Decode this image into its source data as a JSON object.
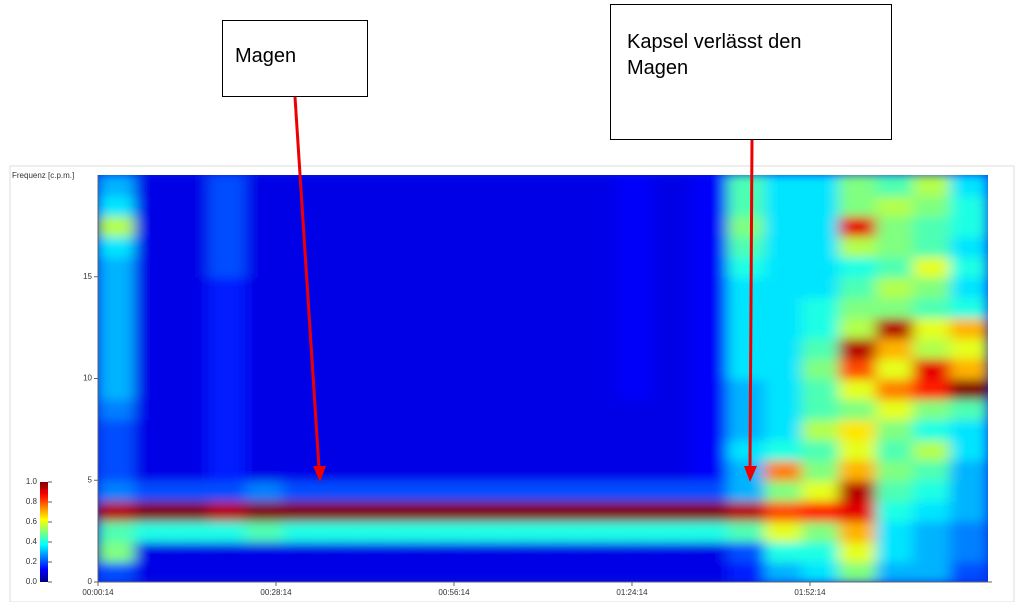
{
  "chart_data": {
    "type": "heatmap",
    "ylabel": "Frequenz [c.p.m.]",
    "annotations": [
      "Magen",
      "Kapsel verlässt den Magen"
    ],
    "xlim": [
      14,
      8414
    ],
    "xticks": [
      {
        "value": 14,
        "label": "00:00:14"
      },
      {
        "value": 1694,
        "label": "00:28:14"
      },
      {
        "value": 3374,
        "label": "00:56:14"
      },
      {
        "value": 5054,
        "label": "01:24:14"
      },
      {
        "value": 6734,
        "label": "01:52:14"
      }
    ],
    "ylim": [
      0,
      20
    ],
    "yticks": [
      0,
      5,
      10,
      15
    ],
    "colorbar_lim": [
      0,
      1
    ],
    "colorbar_ticks": [
      {
        "value": 0,
        "label": "0.0"
      },
      0.2,
      0.4,
      0.6,
      0.8,
      {
        "value": 1,
        "label": "1.0"
      }
    ],
    "x": [
      189,
      539,
      889,
      1239,
      1589,
      1939,
      2289,
      2639,
      2989,
      3339,
      3689,
      4039,
      4389,
      4739,
      5089,
      5439,
      5789,
      6139,
      6489,
      6839,
      7189,
      7539,
      7889,
      8239
    ],
    "y": [
      0.5,
      1.5,
      2.5,
      3.5,
      4.5,
      5.5,
      6.5,
      7.5,
      8.5,
      9.5,
      10.5,
      11.5,
      12.5,
      13.5,
      14.5,
      15.5,
      16.5,
      17.5,
      18.5,
      19.5
    ],
    "z": [
      [
        0.2,
        0.1,
        0.1,
        0.1,
        0.1,
        0.1,
        0.1,
        0.1,
        0.1,
        0.1,
        0.1,
        0.1,
        0.1,
        0.1,
        0.1,
        0.1,
        0.1,
        0.15,
        0.3,
        0.35,
        0.5,
        0.3,
        0.3,
        0.2
      ],
      [
        0.5,
        0.1,
        0.1,
        0.1,
        0.1,
        0.1,
        0.1,
        0.1,
        0.1,
        0.1,
        0.1,
        0.1,
        0.1,
        0.1,
        0.1,
        0.1,
        0.1,
        0.2,
        0.4,
        0.4,
        0.6,
        0.35,
        0.3,
        0.25
      ],
      [
        0.45,
        0.4,
        0.4,
        0.4,
        0.45,
        0.4,
        0.4,
        0.4,
        0.4,
        0.4,
        0.4,
        0.4,
        0.4,
        0.4,
        0.4,
        0.4,
        0.4,
        0.45,
        0.6,
        0.5,
        0.7,
        0.35,
        0.3,
        0.25
      ],
      [
        0.95,
        1,
        1,
        0.95,
        1,
        1,
        1,
        1,
        1,
        1,
        1,
        1,
        1,
        1,
        1,
        1,
        1,
        0.95,
        0.8,
        0.85,
        0.9,
        0.4,
        0.35,
        0.3
      ],
      [
        0.25,
        0.2,
        0.2,
        0.2,
        0.25,
        0.2,
        0.2,
        0.2,
        0.2,
        0.2,
        0.2,
        0.2,
        0.2,
        0.2,
        0.2,
        0.2,
        0.2,
        0.3,
        0.5,
        0.6,
        0.95,
        0.45,
        0.4,
        0.3
      ],
      [
        0.2,
        0.1,
        0.1,
        0.15,
        0.1,
        0.1,
        0.1,
        0.1,
        0.1,
        0.1,
        0.1,
        0.1,
        0.1,
        0.1,
        0.1,
        0.1,
        0.12,
        0.3,
        0.75,
        0.5,
        0.7,
        0.5,
        0.45,
        0.3
      ],
      [
        0.2,
        0.1,
        0.1,
        0.15,
        0.1,
        0.1,
        0.1,
        0.1,
        0.1,
        0.1,
        0.1,
        0.1,
        0.1,
        0.1,
        0.1,
        0.1,
        0.12,
        0.35,
        0.4,
        0.45,
        0.6,
        0.45,
        0.55,
        0.35
      ],
      [
        0.2,
        0.1,
        0.1,
        0.15,
        0.1,
        0.1,
        0.1,
        0.1,
        0.1,
        0.1,
        0.1,
        0.1,
        0.1,
        0.1,
        0.1,
        0.1,
        0.12,
        0.3,
        0.35,
        0.55,
        0.65,
        0.5,
        0.4,
        0.35
      ],
      [
        0.25,
        0.1,
        0.1,
        0.15,
        0.1,
        0.1,
        0.1,
        0.1,
        0.1,
        0.1,
        0.1,
        0.1,
        0.1,
        0.1,
        0.1,
        0.1,
        0.12,
        0.3,
        0.35,
        0.45,
        0.5,
        0.6,
        0.5,
        0.45
      ],
      [
        0.3,
        0.1,
        0.1,
        0.15,
        0.1,
        0.1,
        0.1,
        0.1,
        0.1,
        0.1,
        0.1,
        0.1,
        0.1,
        0.1,
        0.12,
        0.1,
        0.12,
        0.3,
        0.35,
        0.45,
        0.6,
        0.75,
        0.85,
        1
      ],
      [
        0.3,
        0.1,
        0.1,
        0.15,
        0.1,
        0.1,
        0.1,
        0.1,
        0.1,
        0.1,
        0.1,
        0.1,
        0.1,
        0.1,
        0.12,
        0.1,
        0.12,
        0.35,
        0.35,
        0.5,
        0.8,
        0.6,
        0.9,
        0.7
      ],
      [
        0.3,
        0.1,
        0.1,
        0.15,
        0.1,
        0.1,
        0.1,
        0.1,
        0.1,
        0.1,
        0.1,
        0.1,
        0.1,
        0.1,
        0.12,
        0.1,
        0.12,
        0.35,
        0.35,
        0.45,
        0.95,
        0.7,
        0.55,
        0.6
      ],
      [
        0.3,
        0.1,
        0.1,
        0.15,
        0.1,
        0.1,
        0.1,
        0.1,
        0.1,
        0.1,
        0.1,
        0.1,
        0.1,
        0.1,
        0.12,
        0.1,
        0.12,
        0.35,
        0.35,
        0.4,
        0.55,
        0.95,
        0.6,
        0.7
      ],
      [
        0.3,
        0.1,
        0.1,
        0.15,
        0.1,
        0.1,
        0.1,
        0.1,
        0.1,
        0.1,
        0.1,
        0.1,
        0.1,
        0.1,
        0.12,
        0.1,
        0.12,
        0.35,
        0.35,
        0.4,
        0.5,
        0.5,
        0.45,
        0.4
      ],
      [
        0.3,
        0.1,
        0.1,
        0.15,
        0.1,
        0.1,
        0.1,
        0.1,
        0.1,
        0.1,
        0.1,
        0.1,
        0.1,
        0.1,
        0.12,
        0.1,
        0.12,
        0.35,
        0.35,
        0.35,
        0.45,
        0.55,
        0.5,
        0.35
      ],
      [
        0.3,
        0.1,
        0.1,
        0.2,
        0.1,
        0.1,
        0.1,
        0.1,
        0.1,
        0.1,
        0.1,
        0.1,
        0.1,
        0.1,
        0.12,
        0.1,
        0.12,
        0.4,
        0.35,
        0.35,
        0.4,
        0.45,
        0.6,
        0.4
      ],
      [
        0.35,
        0.1,
        0.1,
        0.2,
        0.1,
        0.1,
        0.1,
        0.1,
        0.1,
        0.1,
        0.1,
        0.1,
        0.1,
        0.1,
        0.12,
        0.1,
        0.12,
        0.45,
        0.35,
        0.35,
        0.55,
        0.5,
        0.45,
        0.35
      ],
      [
        0.55,
        0.1,
        0.1,
        0.2,
        0.1,
        0.1,
        0.1,
        0.1,
        0.1,
        0.1,
        0.1,
        0.1,
        0.1,
        0.1,
        0.12,
        0.1,
        0.12,
        0.5,
        0.35,
        0.35,
        0.9,
        0.5,
        0.45,
        0.4
      ],
      [
        0.35,
        0.1,
        0.1,
        0.2,
        0.1,
        0.1,
        0.1,
        0.1,
        0.1,
        0.1,
        0.1,
        0.1,
        0.1,
        0.1,
        0.12,
        0.1,
        0.12,
        0.45,
        0.35,
        0.35,
        0.5,
        0.55,
        0.5,
        0.4
      ],
      [
        0.3,
        0.1,
        0.1,
        0.2,
        0.1,
        0.1,
        0.1,
        0.1,
        0.1,
        0.1,
        0.1,
        0.1,
        0.1,
        0.1,
        0.12,
        0.1,
        0.12,
        0.45,
        0.35,
        0.35,
        0.5,
        0.45,
        0.55,
        0.35
      ]
    ]
  }
}
